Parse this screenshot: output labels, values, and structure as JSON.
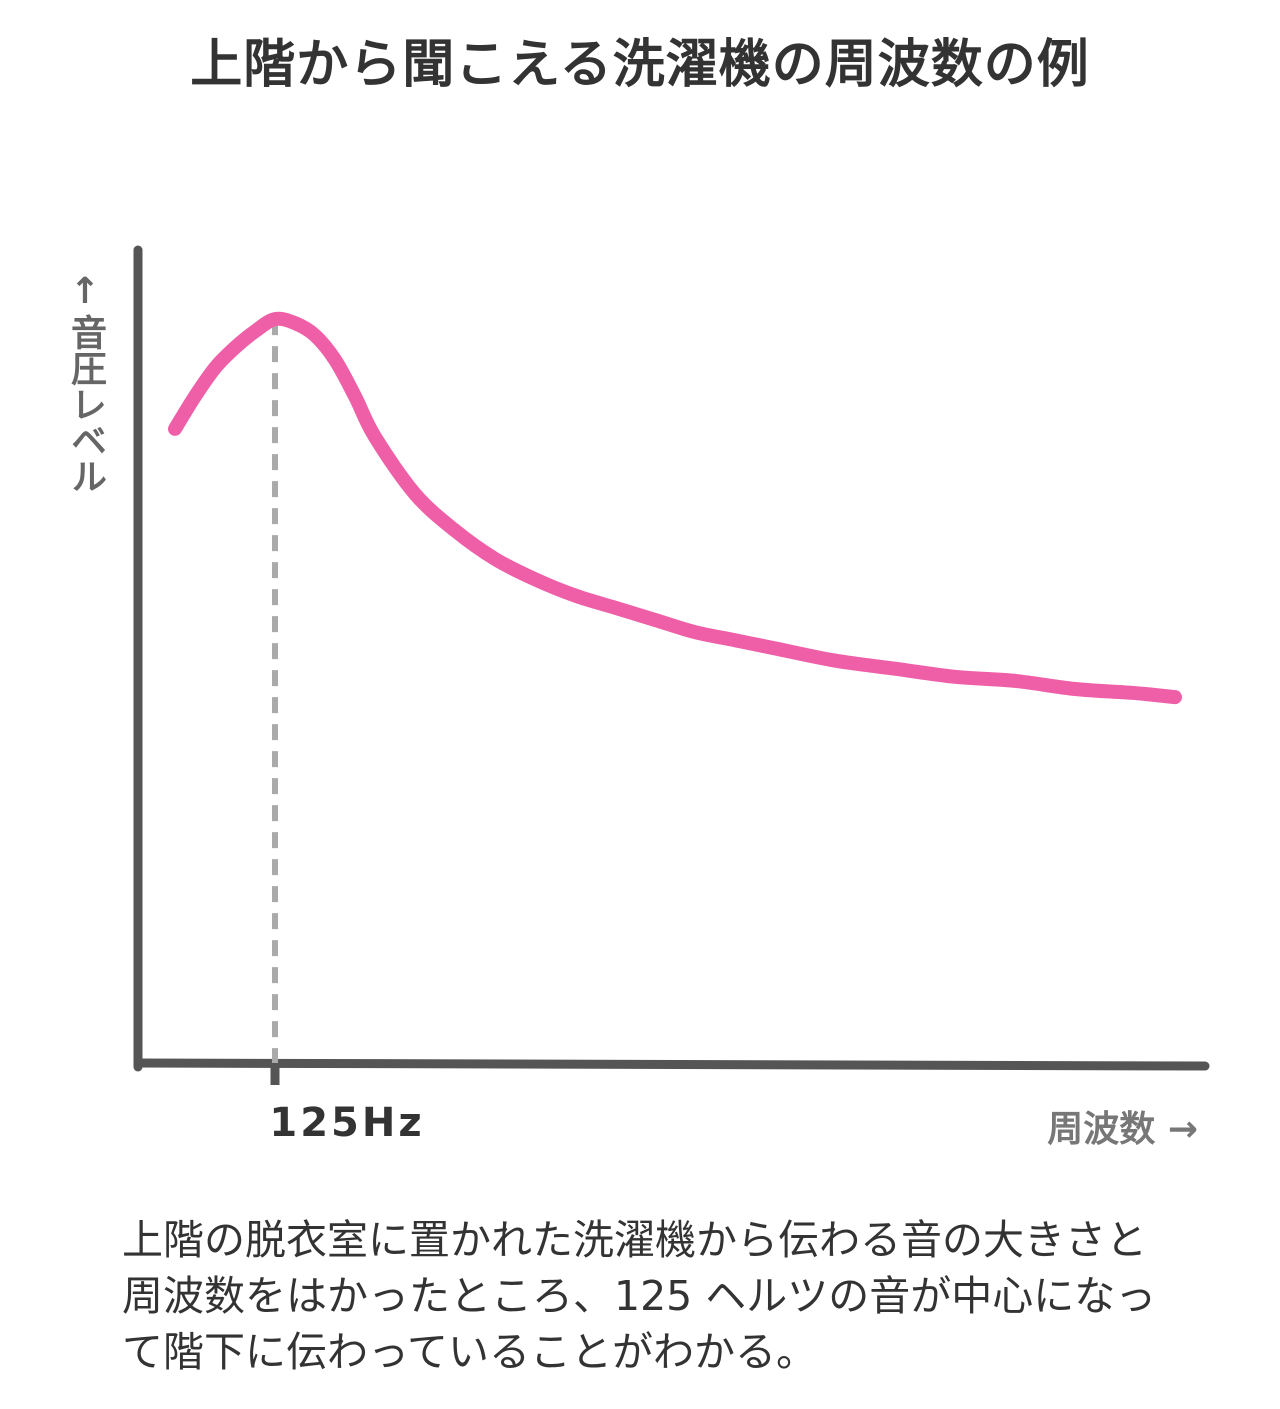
{
  "title": "上階から聞こえる洗濯機の周波数の例",
  "chart_data": {
    "type": "line",
    "title": "上階から聞こえる洗濯機の周波数の例",
    "ylabel": "音圧レベル",
    "xlabel": "周波数",
    "annotations": [
      "125Hz"
    ],
    "peak_frequency": "125Hz",
    "grid": false,
    "axis_arrows": {
      "y": "↑",
      "x": "→"
    },
    "series": [
      {
        "x": [
          0,
          0.1,
          0.2,
          0.3,
          0.4,
          0.5,
          0.6,
          0.7,
          0.8,
          0.9,
          1.0,
          1.2,
          1.4,
          1.6,
          1.8,
          2.0,
          2.2,
          2.4,
          2.6,
          2.8,
          3.0,
          3.3,
          3.6,
          3.9,
          4.2,
          4.5,
          4.8,
          5.0
        ],
        "y": [
          78,
          82,
          85.5,
          88,
          90,
          91.5,
          91,
          89.5,
          86.5,
          82,
          77,
          70,
          65.5,
          62,
          59.5,
          57.5,
          56,
          54.5,
          53,
          52,
          51,
          49.5,
          48.5,
          47.5,
          47,
          46,
          45.5,
          45
        ]
      }
    ],
    "ylim": [
      0,
      100
    ]
  },
  "colors": {
    "curve": "#ef5fa7",
    "axis": "#555555",
    "guide": "#aaaaaa",
    "title": "#333333",
    "muted_label": "#777777"
  },
  "caption": "上階の脱衣室に置かれた洗濯機から伝わる音の大きさと周波数をはかったところ、125 ヘルツの音が中心になって階下に伝わっていることがわかる。"
}
